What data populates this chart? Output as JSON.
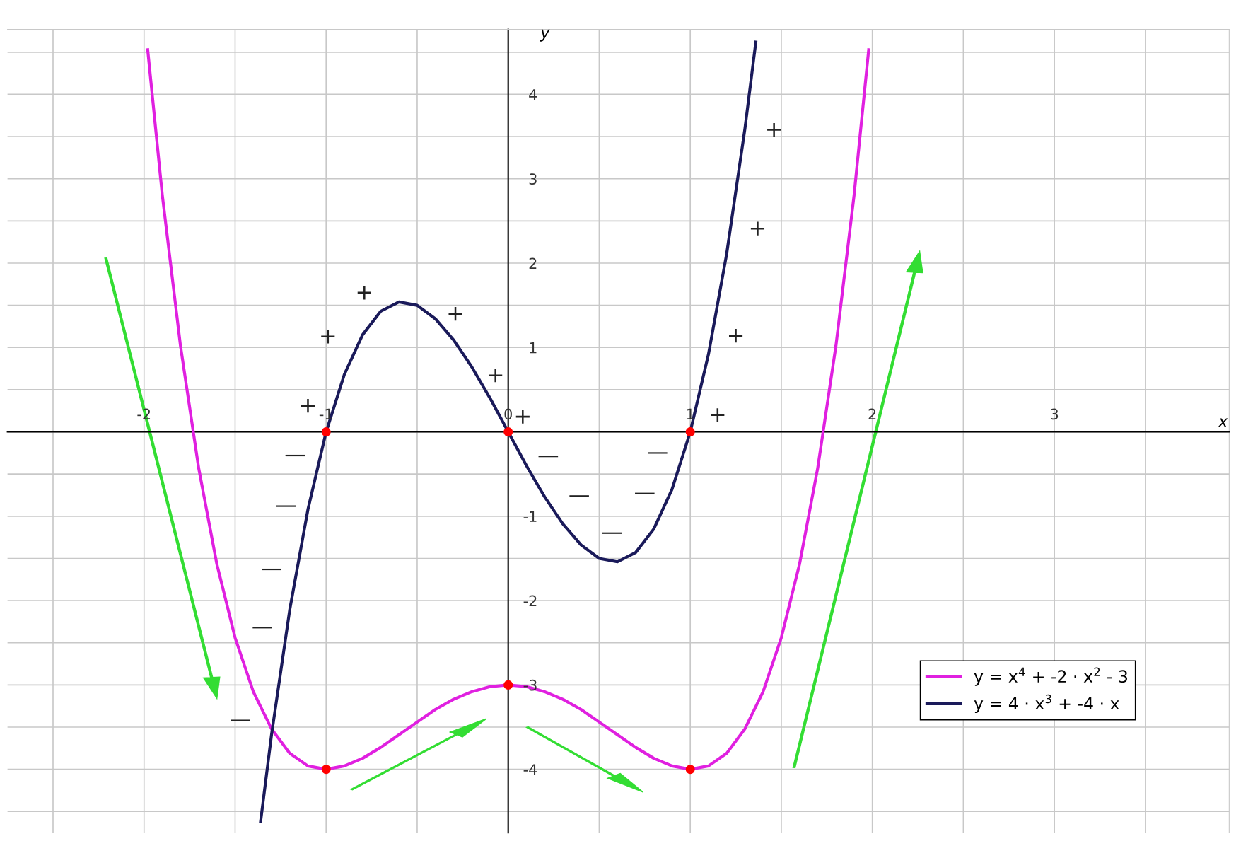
{
  "chart_data": {
    "type": "line",
    "xlabel": "x",
    "ylabel": "y",
    "xlim": [
      -2.75,
      3.96
    ],
    "ylim": [
      -4.75,
      4.77
    ],
    "xticks": [
      {
        "value": -2.5,
        "label": null
      },
      -2,
      {
        "value": -1.5,
        "label": null
      },
      -1,
      {
        "value": -0.5,
        "label": null
      },
      0,
      {
        "value": 0.5,
        "label": null
      },
      1,
      {
        "value": 1.5,
        "label": null
      },
      2,
      {
        "value": 2.5,
        "label": null
      },
      3,
      {
        "value": 3.5,
        "label": null
      }
    ],
    "yticks": [
      {
        "value": -4.5,
        "label": null
      },
      -4,
      {
        "value": -3.5,
        "label": null
      },
      -3,
      {
        "value": -2.5,
        "label": null
      },
      -2,
      {
        "value": -1.5,
        "label": null
      },
      -1,
      {
        "value": -0.5,
        "label": null
      },
      {
        "value": 0,
        "label": null
      },
      {
        "value": 0.5,
        "label": null
      },
      1,
      {
        "value": 1.5,
        "label": null
      },
      2,
      {
        "value": 2.5,
        "label": null
      },
      3,
      {
        "value": 3.5,
        "label": null
      },
      4,
      {
        "value": 4.5,
        "label": null
      }
    ],
    "grid": true,
    "legend": "bottom right",
    "marker": "none",
    "line_style": "solid",
    "series": [
      {
        "name": "y = x$^{4}$ + -2 · x$^{2}$ - 3",
        "color": "#e020e0",
        "x": [
          -1.98,
          -1.9,
          -1.8,
          -1.7,
          -1.6,
          -1.5,
          -1.4,
          -1.3,
          -1.2,
          -1.1,
          -1,
          -0.9,
          -0.8,
          -0.7,
          -0.6,
          -0.5,
          -0.4,
          -0.3,
          -0.2,
          -0.1,
          0,
          0.1,
          0.2,
          0.3,
          0.4,
          0.5,
          0.6,
          0.7,
          0.8,
          0.9,
          1,
          1.1,
          1.2,
          1.3,
          1.4,
          1.5,
          1.6,
          1.7,
          1.8,
          1.9,
          1.98
        ],
        "values": [
          4.53,
          2.81,
          1.02,
          -0.43,
          -1.57,
          -2.44,
          -3.08,
          -3.52,
          -3.81,
          -3.96,
          -4,
          -3.96,
          -3.87,
          -3.74,
          -3.59,
          -3.44,
          -3.29,
          -3.17,
          -3.08,
          -3.02,
          -3,
          -3.02,
          -3.08,
          -3.17,
          -3.29,
          -3.44,
          -3.59,
          -3.74,
          -3.87,
          -3.96,
          -4,
          -3.96,
          -3.81,
          -3.52,
          -3.08,
          -2.44,
          -1.57,
          -0.43,
          1.02,
          2.81,
          4.53
        ]
      },
      {
        "name": "y = 4 · x$^{3}$ + -4 · x",
        "color": "#1a1a5a",
        "x": [
          -1.36,
          -1.3,
          -1.2,
          -1.1,
          -1,
          -0.9,
          -0.8,
          -0.7,
          -0.6,
          -0.5,
          -0.4,
          -0.3,
          -0.2,
          -0.1,
          0,
          0.1,
          0.2,
          0.3,
          0.4,
          0.5,
          0.6,
          0.7,
          0.8,
          0.9,
          1,
          1.1,
          1.2,
          1.3,
          1.36
        ],
        "values": [
          -4.62,
          -3.59,
          -2.11,
          -0.92,
          0,
          0.68,
          1.15,
          1.43,
          1.54,
          1.5,
          1.34,
          1.09,
          0.77,
          0.4,
          0,
          -0.4,
          -0.77,
          -1.09,
          -1.34,
          -1.5,
          -1.54,
          -1.43,
          -1.15,
          -0.68,
          0,
          0.92,
          2.11,
          3.59,
          4.62
        ]
      },
      {
        "type": "scatter",
        "color": "#ff0000",
        "marker": "circle",
        "x": [
          -1,
          0,
          1,
          -1,
          0,
          1
        ],
        "values": [
          0,
          0,
          0,
          -4,
          -3,
          -4
        ]
      }
    ],
    "annotations": [
      "+",
      "+",
      "+",
      "+",
      "+",
      "+",
      "+",
      "+",
      "+",
      "+",
      "—",
      "—",
      "—",
      "—",
      "—",
      "—",
      "—",
      "—",
      "—",
      "—"
    ]
  }
}
